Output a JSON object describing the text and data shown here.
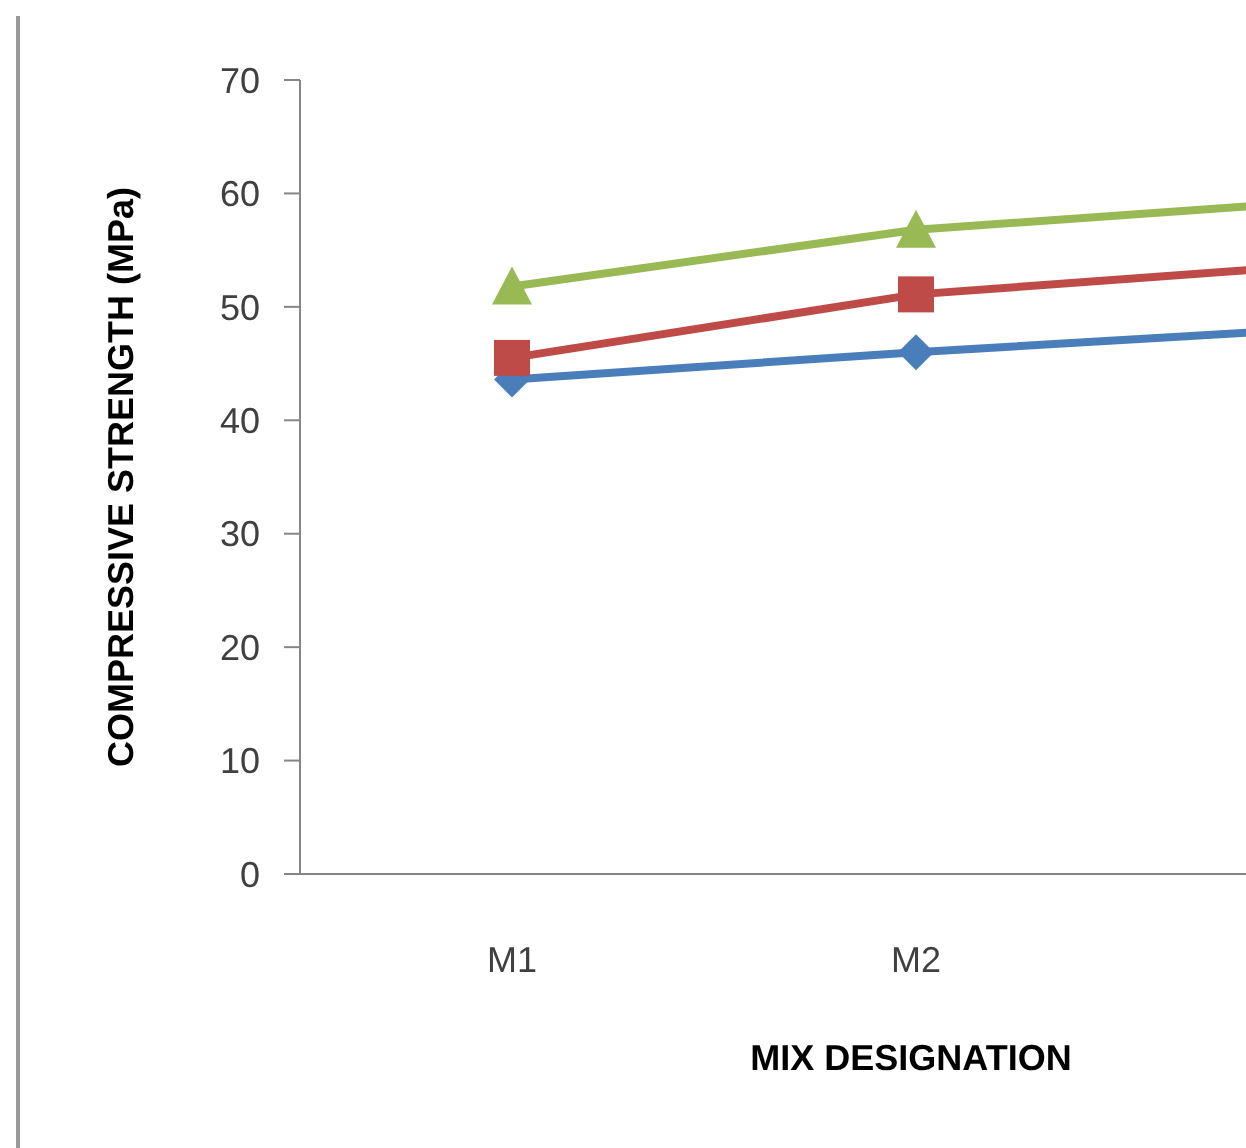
{
  "chart_data": {
    "type": "line",
    "xlabel": "MIX DESIGNATION",
    "ylabel": "COMPRESSIVE STRENGTH (MPa)",
    "categories": [
      "M1",
      "M2",
      null
    ],
    "ylim": [
      0,
      70
    ],
    "yticks": [
      0,
      10,
      20,
      30,
      40,
      50,
      60,
      70
    ],
    "grid": false,
    "legend": false,
    "line_style": "solid",
    "series": [
      {
        "color": "#4a7ebb",
        "marker": "diamond",
        "values": [
          43.6,
          46.0,
          48.1
        ]
      },
      {
        "color": "#be4b48",
        "marker": "square",
        "values": [
          45.5,
          51.1,
          53.7
        ]
      },
      {
        "color": "#98b954",
        "marker": "triangle",
        "values": [
          51.8,
          56.8,
          59.3
        ]
      }
    ]
  }
}
